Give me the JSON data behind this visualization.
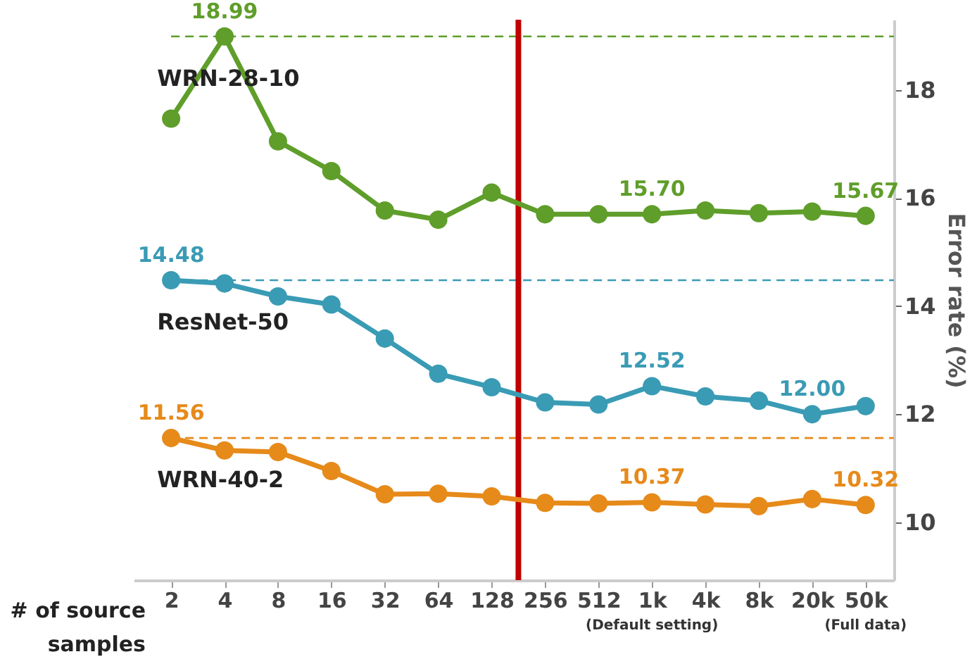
{
  "chart_data": {
    "type": "line",
    "xlabel": "# of source samples",
    "ylabel": "Error rate (%)",
    "categories": [
      "2",
      "4",
      "8",
      "16",
      "32",
      "64",
      "128",
      "256",
      "512",
      "1k",
      "4k",
      "8k",
      "20k",
      "50k"
    ],
    "series": [
      {
        "name": "WRN-28-10",
        "color": "#5f9e2a",
        "values": [
          17.47,
          18.99,
          17.05,
          16.5,
          15.77,
          15.6,
          16.1,
          15.7,
          15.7,
          15.7,
          15.77,
          15.72,
          15.75,
          15.67
        ],
        "value_labels": [
          null,
          "18.99",
          null,
          null,
          null,
          null,
          null,
          null,
          null,
          "15.70",
          null,
          null,
          null,
          "15.67"
        ]
      },
      {
        "name": "ResNet-50",
        "color": "#3a9bb5",
        "values": [
          14.48,
          14.42,
          14.18,
          14.03,
          13.4,
          12.75,
          12.5,
          12.22,
          12.18,
          12.52,
          12.33,
          12.25,
          12.0,
          12.15
        ],
        "value_labels": [
          "14.48",
          null,
          null,
          null,
          null,
          null,
          null,
          null,
          null,
          "12.52",
          null,
          null,
          "12.00",
          null
        ]
      },
      {
        "name": "WRN-40-2",
        "color": "#e68a1a",
        "values": [
          11.56,
          11.33,
          11.3,
          10.95,
          10.52,
          10.53,
          10.48,
          10.36,
          10.35,
          10.37,
          10.33,
          10.3,
          10.43,
          10.32
        ],
        "value_labels": [
          "11.56",
          null,
          null,
          null,
          null,
          null,
          null,
          null,
          null,
          "10.37",
          null,
          null,
          null,
          "10.32"
        ]
      }
    ],
    "ylim": [
      8.93,
      19.3
    ],
    "yticks": [
      10,
      12,
      14,
      16,
      18
    ],
    "ref_lines": [
      {
        "axis": "y",
        "value": 18.99,
        "color": "#5f9e2a",
        "line_style": "dashed"
      },
      {
        "axis": "y",
        "value": 14.48,
        "color": "#3a9bb5",
        "line_style": "dashed"
      },
      {
        "axis": "y",
        "value": 11.56,
        "color": "#e68a1a",
        "line_style": "dashed"
      },
      {
        "axis": "x",
        "value": "256",
        "color": "#c00000",
        "line_style": "solid"
      }
    ],
    "annotations": [
      "(Default setting)",
      "(Full data)"
    ],
    "marker": "circle",
    "line_style": "solid",
    "grid": false,
    "legend": false
  }
}
